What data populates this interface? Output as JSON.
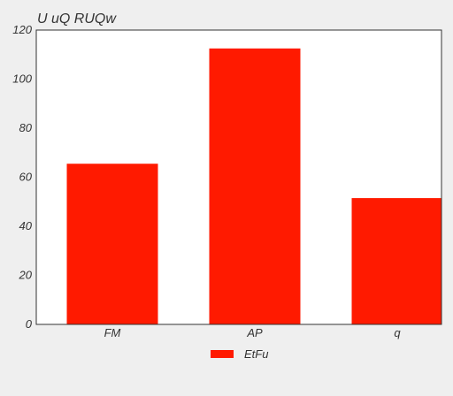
{
  "chart_data": {
    "type": "bar",
    "title": "U  uQ    RUQw",
    "categories": [
      "FM",
      "AP",
      "q"
    ],
    "series": [
      {
        "name": "EtFu",
        "values": [
          65.5,
          112.5,
          51.5
        ]
      }
    ],
    "ylim": [
      0,
      120
    ],
    "yticks": [
      0,
      20,
      40,
      60,
      80,
      100,
      120
    ],
    "grid": false,
    "legend": "bottom-center",
    "colors": {
      "bar": "#ff1a00",
      "background": "#efefef",
      "plot_background": "#ffffff",
      "axis": "#333333"
    }
  }
}
